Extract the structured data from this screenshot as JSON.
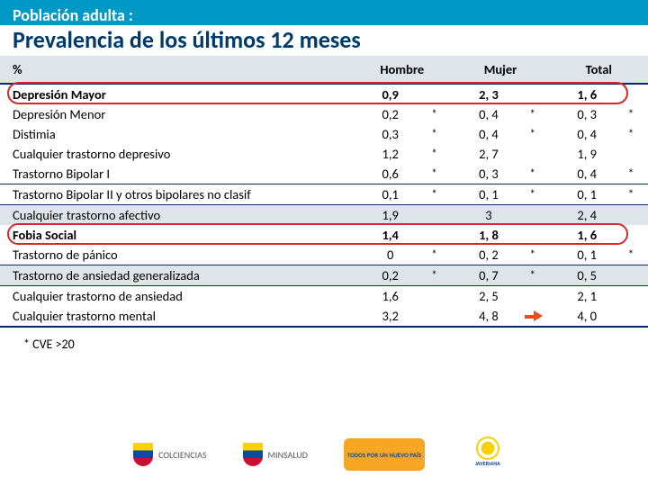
{
  "header": {
    "subtitle": "Población adulta :",
    "title": "Prevalencia de los últimos 12 meses"
  },
  "columns": {
    "c0": "%",
    "c1": "Hombre",
    "c2": "Mujer",
    "c3": "Total"
  },
  "rows": [
    {
      "label": "Depresión Mayor",
      "h": "0,9",
      "ha": "",
      "m": "2, 3",
      "ma": "",
      "t": "1, 6",
      "ta": "",
      "bold": true,
      "hl": true
    },
    {
      "label": "Depresión Menor",
      "h": "0,2",
      "ha": "*",
      "m": "0, 4",
      "ma": "*",
      "t": "0, 3",
      "ta": "*"
    },
    {
      "label": "Distimia",
      "h": "0,3",
      "ha": "*",
      "m": "0, 4",
      "ma": "*",
      "t": "0, 4",
      "ta": "*"
    },
    {
      "label": "Cualquier trastorno depresivo",
      "h": "1,2",
      "ha": "*",
      "m": "2, 7",
      "ma": "",
      "t": "1, 9",
      "ta": ""
    },
    {
      "label": "Trastorno Bipolar I",
      "h": "0,6",
      "ha": "*",
      "m": "0, 3",
      "ma": "*",
      "t": "0, 4",
      "ta": "*"
    },
    {
      "label": "Trastorno Bipolar II y otros bipolares no clasif",
      "h": "0,1",
      "ha": "*",
      "m": "0, 1",
      "ma": "*",
      "t": "0, 1",
      "ta": "*",
      "sep": true
    },
    {
      "label": "Cualquier trastorno afectivo",
      "h": "1,9",
      "ha": "",
      "m": "3",
      "ma": "",
      "t": "2, 4",
      "ta": "",
      "sep": true,
      "shade": true
    },
    {
      "label": "Fobia Social",
      "h": "1,4",
      "ha": "",
      "m": "1, 8",
      "ma": "",
      "t": "1, 6",
      "ta": "",
      "bold": true,
      "hl": true
    },
    {
      "label": "Trastorno de pánico",
      "h": "0",
      "ha": "*",
      "m": "0, 2",
      "ma": "*",
      "t": "0, 1",
      "ta": "*"
    },
    {
      "label": "Trastorno de ansiedad generalizada",
      "h": "0,2",
      "ha": "*",
      "m": "0, 7",
      "ma": "*",
      "t": "0, 5",
      "ta": "",
      "sep": true,
      "shade": true
    },
    {
      "label": "Cualquier trastorno de ansiedad",
      "h": "1,6",
      "ha": "",
      "m": "2, 5",
      "ma": "",
      "t": "2, 1",
      "ta": "",
      "sep": true
    },
    {
      "label": "Cualquier trastorno mental",
      "h": "3,2",
      "ha": "",
      "m": "4, 8",
      "ma": "",
      "t": "4, 0",
      "ta": "",
      "arrow": true,
      "bsep": true
    }
  ],
  "footnote": "* CVE >20",
  "logos": {
    "colciencias": "COLCIENCIAS",
    "minsalud": "MINSALUD",
    "nuevopais": "TODOS POR UN NUEVO PAÍS",
    "javeriana": "JAVERIANA"
  },
  "style": {
    "header_bg": "#0099c6",
    "title_color": "#003a6b",
    "row_border": "#002b66",
    "shade_bg": "#dfe4e8",
    "highlight_border": "#d62828",
    "arrow_color": "#e94e1b"
  }
}
